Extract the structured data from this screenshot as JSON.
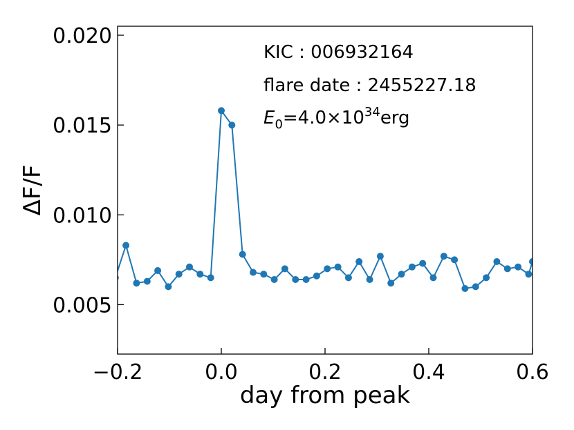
{
  "chart_data": {
    "type": "line",
    "xlabel": "day from peak",
    "ylabel": "ΔF/F",
    "xlim": [
      -0.2,
      0.6
    ],
    "ylim": [
      0.00225,
      0.0205
    ],
    "xticks": [
      -0.2,
      0.0,
      0.2,
      0.4,
      0.6
    ],
    "xtick_labels": [
      "−0.2",
      "0.0",
      "0.2",
      "0.4",
      "0.6"
    ],
    "yticks": [
      0.005,
      0.01,
      0.015,
      0.02
    ],
    "ytick_labels": [
      "0.005",
      "0.010",
      "0.015",
      "0.020"
    ],
    "grid": false,
    "series_color": "#1f77b4",
    "annotations": {
      "kic": "KIC : 006932164",
      "flare_date": "flare date : 2455227.18",
      "energy_symbol": "E",
      "energy_subscript": "0",
      "energy_mid": "=4.0×10",
      "energy_exponent": "34",
      "energy_unit": "erg"
    },
    "x": [
      -0.2043,
      -0.1839,
      -0.1635,
      -0.143,
      -0.1226,
      -0.1022,
      -0.0817,
      -0.0613,
      -0.0409,
      -0.0204,
      0.0,
      0.0204,
      0.0409,
      0.0613,
      0.0817,
      0.1022,
      0.1226,
      0.143,
      0.1635,
      0.1839,
      0.2043,
      0.2248,
      0.2452,
      0.2656,
      0.2861,
      0.3065,
      0.3269,
      0.3474,
      0.3678,
      0.3882,
      0.4086,
      0.4291,
      0.4495,
      0.4699,
      0.4904,
      0.5108,
      0.5312,
      0.5517,
      0.5721,
      0.5925,
      0.6
    ],
    "y": [
      0.0065,
      0.0083,
      0.0062,
      0.0063,
      0.0069,
      0.006,
      0.0067,
      0.0071,
      0.0067,
      0.0065,
      0.0158,
      0.015,
      0.0078,
      0.0068,
      0.0067,
      0.0064,
      0.007,
      0.0064,
      0.0064,
      0.0066,
      0.007,
      0.0071,
      0.0065,
      0.0074,
      0.0064,
      0.0077,
      0.0062,
      0.0067,
      0.0071,
      0.0073,
      0.0065,
      0.0077,
      0.0075,
      0.0059,
      0.006,
      0.0065,
      0.0074,
      0.007,
      0.0071,
      0.0067,
      0.0074
    ]
  }
}
